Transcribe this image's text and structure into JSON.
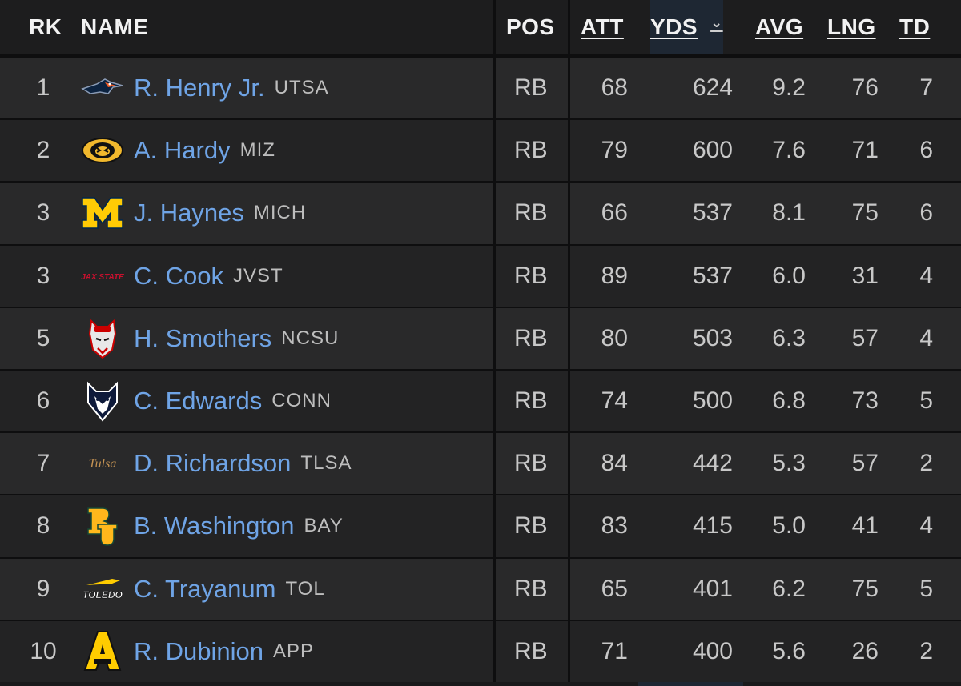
{
  "header": {
    "rk": "RK",
    "name": "NAME",
    "pos": "POS",
    "att": "ATT",
    "yds": "YDS",
    "avg": "AVG",
    "lng": "LNG",
    "td": "TD",
    "sort_icon": "chevron-down-icon"
  },
  "rows": [
    {
      "rk": "1",
      "name": "R. Henry Jr.",
      "team": "UTSA",
      "pos": "RB",
      "att": "68",
      "yds": "624",
      "avg": "9.2",
      "lng": "76",
      "td": "7",
      "logo": "utsa-roadrunner-logo"
    },
    {
      "rk": "2",
      "name": "A. Hardy",
      "team": "MIZ",
      "pos": "RB",
      "att": "79",
      "yds": "600",
      "avg": "7.6",
      "lng": "71",
      "td": "6",
      "logo": "missouri-tiger-logo"
    },
    {
      "rk": "3",
      "name": "J. Haynes",
      "team": "MICH",
      "pos": "RB",
      "att": "66",
      "yds": "537",
      "avg": "8.1",
      "lng": "75",
      "td": "6",
      "logo": "michigan-m-logo"
    },
    {
      "rk": "3",
      "name": "C. Cook",
      "team": "JVST",
      "pos": "RB",
      "att": "89",
      "yds": "537",
      "avg": "6.0",
      "lng": "31",
      "td": "4",
      "logo": "jax-state-logo",
      "logo_text": "JAX STATE"
    },
    {
      "rk": "5",
      "name": "H. Smothers",
      "team": "NCSU",
      "pos": "RB",
      "att": "80",
      "yds": "503",
      "avg": "6.3",
      "lng": "57",
      "td": "4",
      "logo": "nc-state-wolf-logo"
    },
    {
      "rk": "6",
      "name": "C. Edwards",
      "team": "CONN",
      "pos": "RB",
      "att": "74",
      "yds": "500",
      "avg": "6.8",
      "lng": "73",
      "td": "5",
      "logo": "uconn-husky-logo"
    },
    {
      "rk": "7",
      "name": "D. Richardson",
      "team": "TLSA",
      "pos": "RB",
      "att": "84",
      "yds": "442",
      "avg": "5.3",
      "lng": "57",
      "td": "2",
      "logo": "tulsa-script-logo",
      "logo_text": "Tulsa"
    },
    {
      "rk": "8",
      "name": "B. Washington",
      "team": "BAY",
      "pos": "RB",
      "att": "83",
      "yds": "415",
      "avg": "5.0",
      "lng": "41",
      "td": "4",
      "logo": "baylor-bu-logo"
    },
    {
      "rk": "9",
      "name": "C. Trayanum",
      "team": "TOL",
      "pos": "RB",
      "att": "65",
      "yds": "401",
      "avg": "6.2",
      "lng": "75",
      "td": "5",
      "logo": "toledo-logo",
      "logo_text": "TOLEDO"
    },
    {
      "rk": "10",
      "name": "R. Dubinion",
      "team": "APP",
      "pos": "RB",
      "att": "71",
      "yds": "400",
      "avg": "5.6",
      "lng": "26",
      "td": "2",
      "logo": "app-state-a-logo"
    }
  ],
  "colors": {
    "link": "#6fa4e6",
    "sorted_column": "#1e2733",
    "row_odd": "#29292a",
    "row_even": "#232324"
  }
}
